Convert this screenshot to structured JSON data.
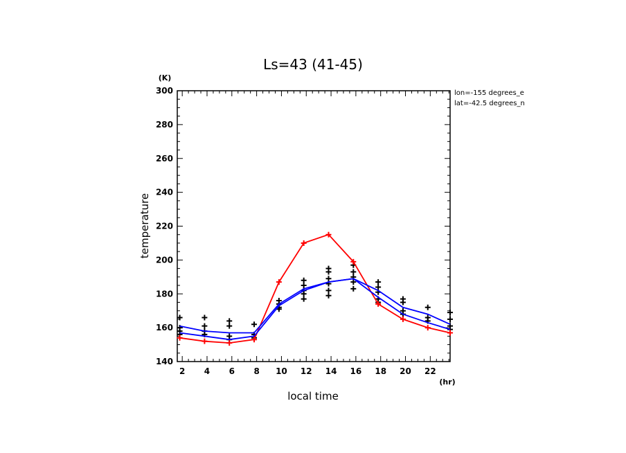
{
  "chart_data": {
    "type": "line",
    "title": "Ls=43 (41-45)",
    "xlabel": "local time",
    "ylabel": "temperature",
    "x_unit": "(hr)",
    "y_unit": "(K)",
    "xlim": [
      1.6,
      23.6
    ],
    "ylim": [
      140,
      300
    ],
    "xticks": [
      2,
      4,
      6,
      8,
      10,
      12,
      14,
      16,
      18,
      20,
      22
    ],
    "yticks": [
      140,
      160,
      180,
      200,
      220,
      240,
      260,
      280,
      300
    ],
    "annotations": [
      "lon=-155 degrees_e",
      "lat=-42.5 degrees_n"
    ],
    "grid": false,
    "x": [
      1.8,
      3.8,
      5.8,
      7.8,
      9.8,
      11.8,
      13.8,
      15.8,
      17.8,
      19.8,
      21.8,
      23.6
    ],
    "series": [
      {
        "color": "#ff0000",
        "marker": "plus",
        "values": [
          154,
          152,
          151,
          153,
          187,
          210,
          215,
          199,
          174,
          165,
          160,
          157
        ]
      },
      {
        "color": "#0000ff",
        "values": [
          157,
          155,
          153,
          155,
          173,
          182,
          187,
          189,
          178,
          168,
          163,
          159
        ]
      },
      {
        "color": "#0000ff",
        "values": [
          161,
          158,
          157,
          157,
          174,
          183,
          187,
          189,
          182,
          172,
          168,
          162
        ]
      }
    ],
    "scatter_points": {
      "color": "#000000",
      "marker": "plus",
      "points": [
        [
          1.8,
          166
        ],
        [
          1.8,
          160
        ],
        [
          1.8,
          158
        ],
        [
          1.8,
          156
        ],
        [
          3.8,
          166
        ],
        [
          3.8,
          161
        ],
        [
          3.8,
          158
        ],
        [
          3.8,
          156
        ],
        [
          5.8,
          164
        ],
        [
          5.8,
          161
        ],
        [
          5.8,
          155
        ],
        [
          5.8,
          153
        ],
        [
          7.8,
          162
        ],
        [
          7.8,
          156
        ],
        [
          7.8,
          154
        ],
        [
          9.8,
          176
        ],
        [
          9.8,
          174
        ],
        [
          9.8,
          172
        ],
        [
          9.8,
          171
        ],
        [
          11.8,
          188
        ],
        [
          11.8,
          185
        ],
        [
          11.8,
          182
        ],
        [
          11.8,
          180
        ],
        [
          11.8,
          177
        ],
        [
          13.8,
          195
        ],
        [
          13.8,
          193
        ],
        [
          13.8,
          189
        ],
        [
          13.8,
          186
        ],
        [
          13.8,
          182
        ],
        [
          13.8,
          179
        ],
        [
          15.8,
          197
        ],
        [
          15.8,
          193
        ],
        [
          15.8,
          190
        ],
        [
          15.8,
          187
        ],
        [
          15.8,
          183
        ],
        [
          17.8,
          187
        ],
        [
          17.8,
          184
        ],
        [
          17.8,
          181
        ],
        [
          17.8,
          177
        ],
        [
          17.8,
          175
        ],
        [
          19.8,
          177
        ],
        [
          19.8,
          175
        ],
        [
          19.8,
          170
        ],
        [
          19.8,
          168
        ],
        [
          21.8,
          172
        ],
        [
          21.8,
          166
        ],
        [
          21.8,
          164
        ],
        [
          23.6,
          169
        ],
        [
          23.6,
          165
        ],
        [
          23.6,
          161
        ],
        [
          23.6,
          159
        ]
      ]
    }
  }
}
